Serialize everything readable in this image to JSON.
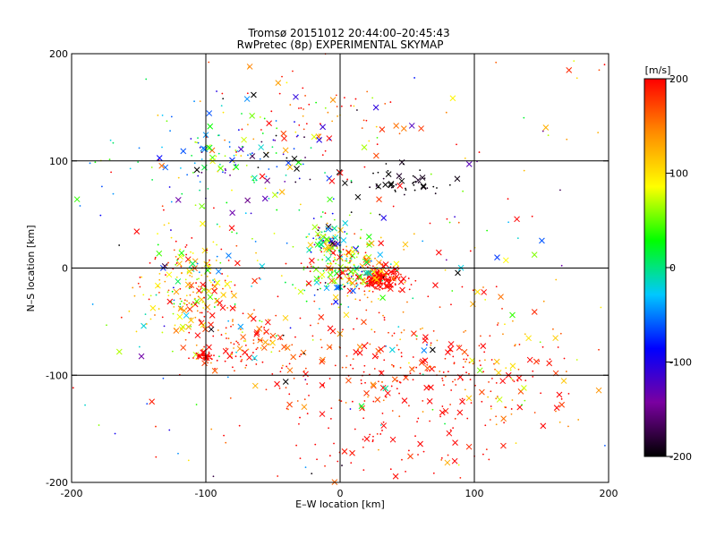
{
  "chart_data": {
    "type": "scatter",
    "title": "Tromsø 20151012 20:44:00–20:45:43",
    "subtitle": "RwPretec (8p) EXPERIMENTAL SKYMAP",
    "xlabel": "E–W location [km]",
    "ylabel": "N–S location [km]",
    "xlim": [
      -200,
      200
    ],
    "ylim": [
      -200,
      200
    ],
    "xticks": [
      -200,
      -100,
      0,
      100,
      200
    ],
    "yticks": [
      -200,
      -100,
      0,
      100,
      200
    ],
    "grid": true,
    "legend": "none",
    "markers": [
      "dot",
      "cross"
    ],
    "colorbar": {
      "label": "[m/s]",
      "range": [
        -200,
        200
      ],
      "ticks": [
        200,
        100,
        0,
        -100,
        -200
      ],
      "colormap": [
        "#000000",
        "#7a00a0",
        "#0000ff",
        "#00c8ff",
        "#00ff00",
        "#ffff00",
        "#ff8c00",
        "#ff0000"
      ]
    },
    "clusters": [
      {
        "x": 30,
        "y": -10,
        "sx": 8,
        "sy": 5,
        "n": 220,
        "v": 200,
        "vs": 10
      },
      {
        "x": 5,
        "y": 0,
        "sx": 18,
        "sy": 15,
        "n": 260,
        "v": 80,
        "vs": 90
      },
      {
        "x": -10,
        "y": 25,
        "sx": 6,
        "sy": 12,
        "n": 60,
        "v": 20,
        "vs": 110
      },
      {
        "x": -110,
        "y": -20,
        "sx": 18,
        "sy": 25,
        "n": 230,
        "v": 120,
        "vs": 80
      },
      {
        "x": -75,
        "y": -70,
        "sx": 22,
        "sy": 15,
        "n": 90,
        "v": 170,
        "vs": 40
      },
      {
        "x": 40,
        "y": -90,
        "sx": 60,
        "sy": 30,
        "n": 220,
        "v": 190,
        "vs": 30
      },
      {
        "x": 120,
        "y": -100,
        "sx": 40,
        "sy": 30,
        "n": 90,
        "v": 160,
        "vs": 60
      },
      {
        "x": 20,
        "y": -160,
        "sx": 50,
        "sy": 25,
        "n": 70,
        "v": 200,
        "vs": 15
      },
      {
        "x": -90,
        "y": 90,
        "sx": 40,
        "sy": 30,
        "n": 120,
        "v": 0,
        "vs": 100
      },
      {
        "x": -20,
        "y": 150,
        "sx": 35,
        "sy": 25,
        "n": 60,
        "v": 160,
        "vs": 80
      },
      {
        "x": 45,
        "y": 80,
        "sx": 20,
        "sy": 8,
        "n": 50,
        "v": -200,
        "vs": 10
      },
      {
        "x": -60,
        "y": 110,
        "sx": 30,
        "sy": 20,
        "n": 40,
        "v": -100,
        "vs": 80
      },
      {
        "x": -100,
        "y": -82,
        "sx": 3,
        "sy": 2,
        "n": 30,
        "v": 200,
        "vs": 5
      },
      {
        "x": 0,
        "y": 0,
        "sx": 130,
        "sy": 110,
        "n": 380,
        "v": 80,
        "vs": 150
      }
    ]
  }
}
